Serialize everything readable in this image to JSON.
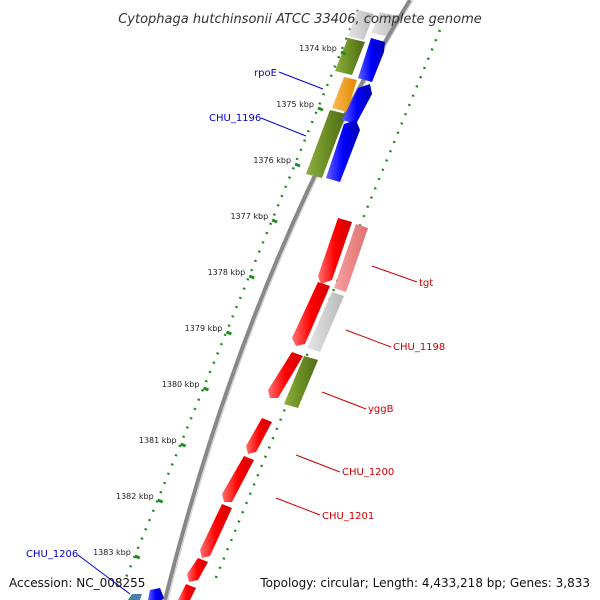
{
  "title": "Cytophaga hutchinsonii ATCC 33406, complete genome",
  "footer": {
    "accession": "Accession: NC_008255",
    "topology": "Topology: circular; Length: 4,433,218 bp; Genes: 3,833"
  },
  "ticks": [
    "1374 kbp",
    "1375 kbp",
    "1376 kbp",
    "1377 kbp",
    "1378 kbp",
    "1379 kbp",
    "1380 kbp",
    "1381 kbp",
    "1382 kbp",
    "1383 kbp"
  ],
  "genes_left": [
    {
      "label": "rpoE",
      "color": "#0000cc"
    },
    {
      "label": "CHU_1196",
      "color": "#0000cc"
    },
    {
      "label": "CHU_1206",
      "color": "#0000cc"
    }
  ],
  "genes_right": [
    {
      "label": "tgt",
      "color": "#cc0000"
    },
    {
      "label": "CHU_1198",
      "color": "#cc0000"
    },
    {
      "label": "yggB",
      "color": "#cc0000"
    },
    {
      "label": "CHU_1200",
      "color": "#cc0000"
    },
    {
      "label": "CHU_1201",
      "color": "#cc0000"
    }
  ],
  "colors": {
    "forward": "#0000ff",
    "reverse": "#ff0000",
    "reverse_pale": "#f08080",
    "cog_green": "#6b8e23",
    "cog_orange": "#ff9900",
    "gray_gene": "#c8c8c8",
    "backbone": "#888888",
    "gc_dots": "#228b22"
  }
}
